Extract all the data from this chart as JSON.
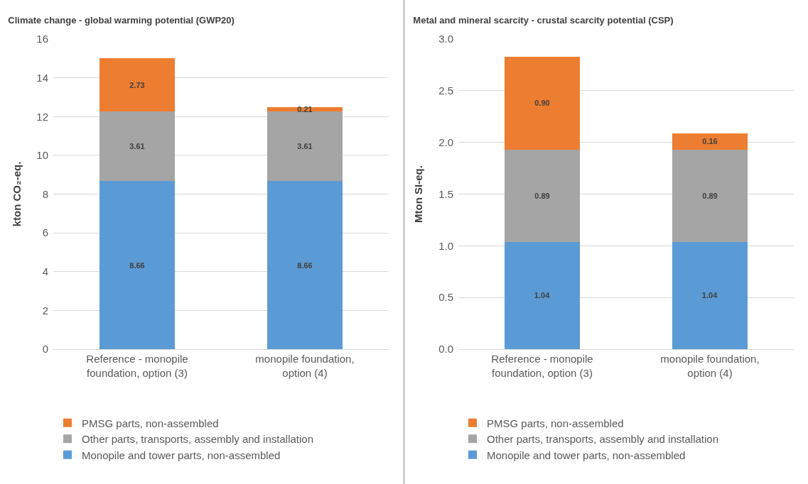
{
  "chart_data": [
    {
      "type": "bar",
      "title": "Climate change - global warming potential (GWP20)",
      "ylabel": "kton CO₂-eq.",
      "categories": [
        "Reference - monopile foundation, option (3)",
        "monopile foundation, option (4)"
      ],
      "stacked": true,
      "data_labels": true,
      "grid": "y",
      "legend": "bottom",
      "ylim": [
        0,
        16
      ],
      "yticks": [
        0,
        2,
        4,
        6,
        8,
        10,
        12,
        14,
        16
      ],
      "series": [
        {
          "name": "Monopile and tower parts, non-assembled",
          "color": "#5b9bd5",
          "values": [
            8.66,
            8.66
          ]
        },
        {
          "name": "Other parts, transports, assembly and installation",
          "color": "#a5a5a5",
          "values": [
            3.61,
            3.61
          ]
        },
        {
          "name": "PMSG parts, non-assembled",
          "color": "#ed7d31",
          "values": [
            2.73,
            0.21
          ]
        }
      ]
    },
    {
      "type": "bar",
      "title": "Metal and mineral scarcity - crustal scarcity potential (CSP)",
      "ylabel": "Mton SI-eq.",
      "categories": [
        "Reference - monopile foundation, option (3)",
        "monopile foundation, option (4)"
      ],
      "stacked": true,
      "grid": "y",
      "legend": "bottom",
      "ylim": [
        0,
        3
      ],
      "yticks": [
        {
          "value": 0,
          "label": "0.0"
        },
        0.5,
        {
          "value": 1,
          "label": "1.0"
        },
        1.5,
        {
          "value": 2,
          "label": "2.0"
        },
        2.5,
        {
          "value": 3,
          "label": "3.0"
        }
      ],
      "series": [
        {
          "name": "Monopile and tower parts, non-assembled",
          "color": "#5b9bd5",
          "values": [
            1.04,
            1.04
          ],
          "value_labels": [
            "1.04",
            "1.04"
          ]
        },
        {
          "name": "Other parts, transports, assembly and installation",
          "color": "#a5a5a5",
          "values": [
            0.89,
            0.89
          ],
          "value_labels": [
            "0.89",
            "0.89"
          ]
        },
        {
          "name": "PMSG parts, non-assembled",
          "color": "#ed7d31",
          "values": [
            0.9,
            0.16
          ],
          "value_labels": [
            "0.90",
            "0.16"
          ]
        }
      ]
    }
  ]
}
